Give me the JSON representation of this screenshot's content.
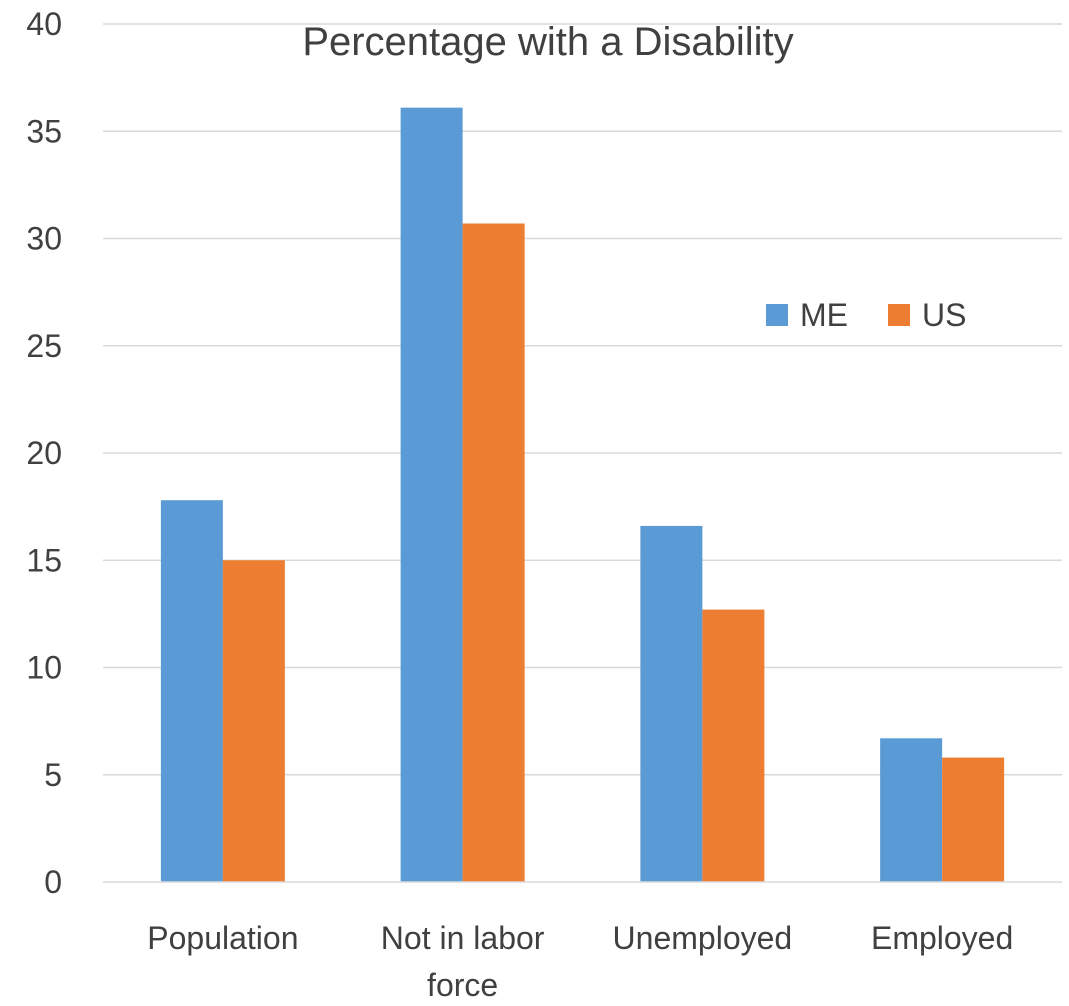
{
  "chart_data": {
    "type": "bar",
    "title": "Percentage with a Disability",
    "xlabel": "",
    "ylabel": "",
    "categories": [
      "Population",
      "Not in labor force",
      "Unemployed",
      "Employed"
    ],
    "category_lines": [
      [
        "Population"
      ],
      [
        "Not in labor",
        "force"
      ],
      [
        "Unemployed"
      ],
      [
        "Employed"
      ]
    ],
    "series": [
      {
        "name": "ME",
        "color": "#5B9BD5",
        "values": [
          17.8,
          36.1,
          16.6,
          6.7
        ]
      },
      {
        "name": "US",
        "color": "#ED7D31",
        "values": [
          15.0,
          30.7,
          12.7,
          5.8
        ]
      }
    ],
    "ylim": [
      0,
      40
    ],
    "yticks": [
      0,
      5,
      10,
      15,
      20,
      25,
      30,
      35,
      40
    ],
    "grid": true,
    "legend_position": "right"
  }
}
